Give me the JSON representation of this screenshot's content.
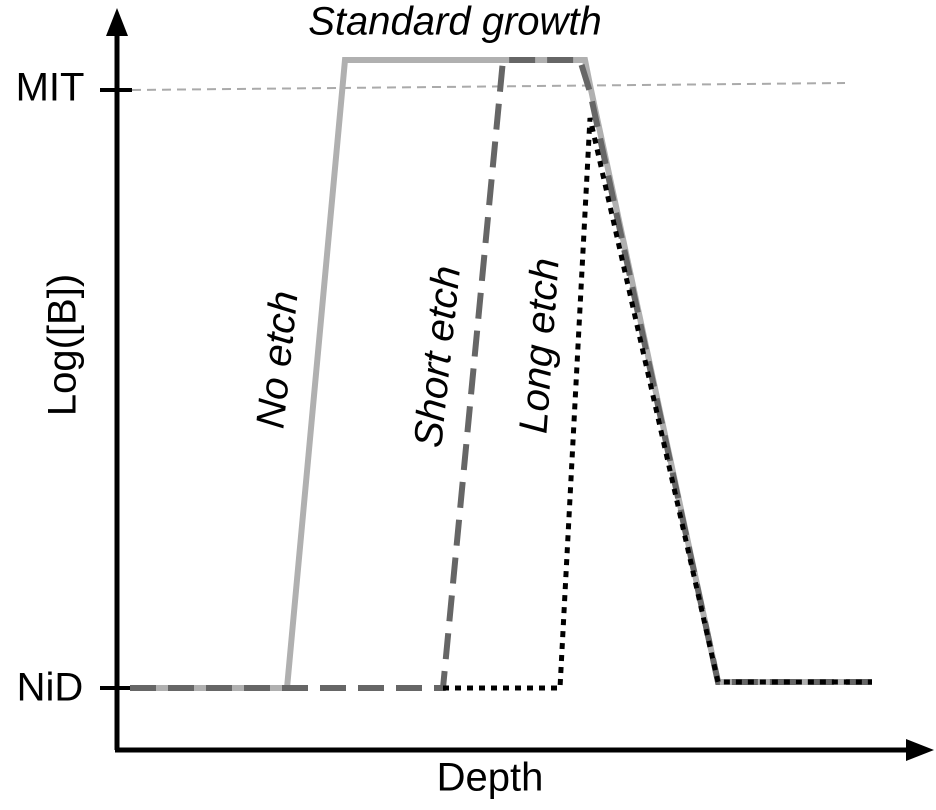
{
  "title": "Standard growth",
  "y_axis": {
    "label": "Log([B])",
    "top_label": "MIT",
    "bottom_label": "NiD"
  },
  "x_axis": {
    "label": "Depth"
  },
  "curves": [
    {
      "label": "No etch"
    },
    {
      "label": "Short etch"
    },
    {
      "label": "Long etch"
    }
  ]
}
